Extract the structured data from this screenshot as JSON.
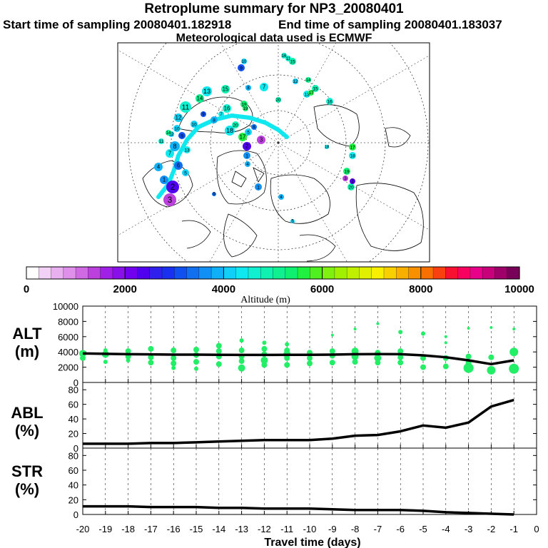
{
  "header": {
    "title": "Retroplume summary for NP3_20080401",
    "start_label": "Start time of sampling 20080401.182918",
    "end_label": "End time of sampling 20080401.183037",
    "met_label": "Meteorological data used is ECMWF"
  },
  "colorbar": {
    "label": "Altitude (m)",
    "ticks": [
      "0",
      "2000",
      "4000",
      "6000",
      "8000",
      "10000"
    ],
    "colors": [
      "#ffffff",
      "#f3d0f5",
      "#e9b0ef",
      "#de90ea",
      "#cf6ae3",
      "#bb40dd",
      "#a020e8",
      "#8a10ea",
      "#7000ee",
      "#5000ee",
      "#3020ee",
      "#1a30f0",
      "#1050f0",
      "#1070f0",
      "#1090f5",
      "#10b0f8",
      "#10d0f8",
      "#10e8f0",
      "#10f0d0",
      "#10f0b0",
      "#10f090",
      "#10f070",
      "#20f040",
      "#50f020",
      "#80f010",
      "#a0f000",
      "#c0f000",
      "#e0f000",
      "#f8f000",
      "#f8d000",
      "#f8b000",
      "#f89000",
      "#f87000",
      "#f84010",
      "#f81030",
      "#f80060",
      "#e8008a",
      "#c8007a",
      "#a0006a",
      "#780058"
    ]
  },
  "map": {
    "points": [
      {
        "label": "3",
        "color": "#bb40dd"
      },
      {
        "label": "2",
        "color": "#5000ee"
      },
      {
        "label": "1",
        "color": "#1090f5"
      },
      {
        "label": "4",
        "color": "#10b0f8"
      },
      {
        "label": "5",
        "color": "#10d0f8"
      },
      {
        "label": "6",
        "color": "#1070f0"
      },
      {
        "label": "7",
        "color": "#10e8f0"
      },
      {
        "label": "8",
        "color": "#10b0f8"
      },
      {
        "label": "9",
        "color": "#1050f0"
      },
      {
        "label": "10",
        "color": "#10d0f8"
      },
      {
        "label": "11",
        "color": "#10f0d0"
      },
      {
        "label": "12",
        "color": "#10d0f8"
      },
      {
        "label": "13",
        "color": "#10e8f0"
      },
      {
        "label": "14",
        "color": "#10f090"
      },
      {
        "label": "15",
        "color": "#10f0b0"
      },
      {
        "label": "16",
        "color": "#10f0d0"
      },
      {
        "label": "17",
        "color": "#20f040"
      },
      {
        "label": "18",
        "color": "#10e8f0"
      },
      {
        "label": "19",
        "color": "#10f070"
      },
      {
        "label": "20",
        "color": "#10f0b0"
      }
    ]
  },
  "chart_data": [
    {
      "type": "line+scatter",
      "title": "ALT",
      "ylabel": "ALT",
      "yunit": "(m)",
      "ylim": [
        0,
        10000
      ],
      "yticks": [
        "0",
        "2000",
        "4000",
        "6000",
        "8000",
        "10000"
      ],
      "x": [
        -20,
        -19,
        -18,
        -17,
        -16,
        -15,
        -14,
        -13,
        -12,
        -11,
        -10,
        -9,
        -8,
        -7,
        -6,
        -5,
        -4,
        -3,
        -2,
        -1
      ],
      "values": [
        3800,
        3750,
        3700,
        3680,
        3650,
        3640,
        3620,
        3610,
        3610,
        3620,
        3620,
        3650,
        3700,
        3720,
        3700,
        3550,
        3300,
        2900,
        2400,
        2900
      ],
      "dots": [
        [
          -20,
          3800,
          5
        ],
        [
          -20,
          3200,
          4
        ],
        [
          -19,
          3700,
          5
        ],
        [
          -19,
          2700,
          3
        ],
        [
          -19,
          4200,
          3
        ],
        [
          -18,
          4100,
          4
        ],
        [
          -18,
          3400,
          4
        ],
        [
          -18,
          2900,
          3
        ],
        [
          -17,
          4400,
          4
        ],
        [
          -17,
          3300,
          4
        ],
        [
          -17,
          2600,
          4
        ],
        [
          -16,
          4200,
          4
        ],
        [
          -16,
          3200,
          4
        ],
        [
          -16,
          2500,
          4
        ],
        [
          -16,
          1900,
          3
        ],
        [
          -15,
          4300,
          4
        ],
        [
          -15,
          3600,
          4
        ],
        [
          -15,
          2700,
          4
        ],
        [
          -15,
          1800,
          3
        ],
        [
          -14,
          4800,
          4
        ],
        [
          -14,
          4100,
          4
        ],
        [
          -14,
          3400,
          4
        ],
        [
          -14,
          2400,
          4
        ],
        [
          -13,
          5500,
          3
        ],
        [
          -13,
          4200,
          4
        ],
        [
          -13,
          3400,
          4
        ],
        [
          -13,
          2800,
          4
        ],
        [
          -13,
          1900,
          5
        ],
        [
          -12,
          5200,
          3
        ],
        [
          -12,
          4400,
          4
        ],
        [
          -12,
          3700,
          4
        ],
        [
          -12,
          2900,
          5
        ],
        [
          -12,
          2300,
          4
        ],
        [
          -11,
          5000,
          3
        ],
        [
          -11,
          4200,
          4
        ],
        [
          -11,
          3700,
          5
        ],
        [
          -11,
          3200,
          4
        ],
        [
          -11,
          2300,
          4
        ],
        [
          -10,
          3900,
          4
        ],
        [
          -10,
          3200,
          4
        ],
        [
          -10,
          2500,
          4
        ],
        [
          -9,
          4100,
          4
        ],
        [
          -9,
          3500,
          4
        ],
        [
          -9,
          2600,
          4
        ],
        [
          -9,
          6200,
          2
        ],
        [
          -8,
          7000,
          2
        ],
        [
          -8,
          4100,
          5
        ],
        [
          -8,
          3400,
          5
        ],
        [
          -8,
          2700,
          4
        ],
        [
          -7,
          7700,
          2
        ],
        [
          -7,
          3900,
          4
        ],
        [
          -7,
          3200,
          5
        ],
        [
          -7,
          2600,
          4
        ],
        [
          -6,
          6600,
          3
        ],
        [
          -6,
          4100,
          4
        ],
        [
          -6,
          3300,
          4
        ],
        [
          -6,
          2600,
          4
        ],
        [
          -5,
          6400,
          3
        ],
        [
          -5,
          3200,
          4
        ],
        [
          -5,
          2000,
          4
        ],
        [
          -4,
          5200,
          2
        ],
        [
          -4,
          6000,
          2
        ],
        [
          -4,
          3200,
          4
        ],
        [
          -4,
          2100,
          4
        ],
        [
          -3,
          7100,
          2
        ],
        [
          -3,
          3400,
          4
        ],
        [
          -3,
          2600,
          4
        ],
        [
          -3,
          1900,
          7
        ],
        [
          -2,
          7200,
          2
        ],
        [
          -2,
          3300,
          4
        ],
        [
          -2,
          1600,
          6
        ],
        [
          -1,
          7000,
          2
        ],
        [
          -1,
          4000,
          6
        ],
        [
          -1,
          1800,
          7
        ]
      ]
    },
    {
      "type": "line",
      "title": "ABL",
      "ylabel": "ABL",
      "yunit": "(%)",
      "ylim": [
        0,
        90
      ],
      "yticks": [
        "0",
        "20",
        "40",
        "60",
        "80"
      ],
      "x": [
        -20,
        -19,
        -18,
        -17,
        -16,
        -15,
        -14,
        -13,
        -12,
        -11,
        -10,
        -9,
        -8,
        -7,
        -6,
        -5,
        -4,
        -3,
        -2,
        -1
      ],
      "values": [
        6,
        6,
        6,
        7,
        7,
        8,
        9,
        10,
        11,
        11,
        11,
        13,
        17,
        18,
        23,
        31,
        28,
        35,
        57,
        66
      ]
    },
    {
      "type": "line",
      "title": "STR",
      "ylabel": "STR",
      "yunit": "(%)",
      "ylim": [
        0,
        90
      ],
      "yticks": [
        "0",
        "20",
        "40",
        "60",
        "80"
      ],
      "x": [
        -20,
        -19,
        -18,
        -17,
        -16,
        -15,
        -14,
        -13,
        -12,
        -11,
        -10,
        -9,
        -8,
        -7,
        -6,
        -5,
        -4,
        -3,
        -2,
        -1
      ],
      "values": [
        11,
        11,
        11,
        10,
        10,
        10,
        9,
        9,
        8,
        8,
        8,
        7,
        6,
        6,
        6,
        5,
        3,
        2,
        1,
        0
      ]
    }
  ],
  "xaxis": {
    "label": "Travel time (days)",
    "ticks": [
      "-20",
      "-19",
      "-18",
      "-17",
      "-16",
      "-15",
      "-14",
      "-13",
      "-12",
      "-11",
      "-10",
      "-9",
      "-8",
      "-7",
      "-6",
      "-5",
      "-4",
      "-3",
      "-2",
      "-1",
      "0"
    ]
  }
}
